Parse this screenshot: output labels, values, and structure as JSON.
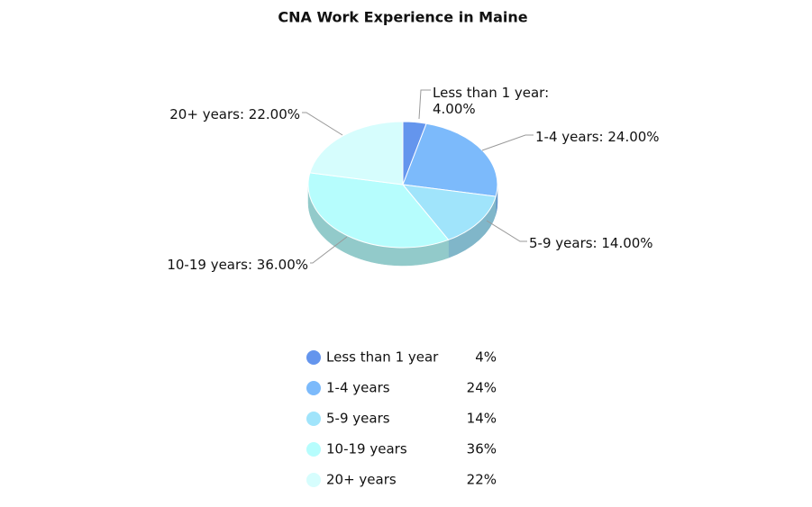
{
  "chart_data": {
    "type": "pie3d",
    "title": "CNA Work Experience in Maine",
    "categories": [
      "Less than 1 year",
      "1-4 years",
      "5-9 years",
      "10-19 years",
      "20+ years"
    ],
    "values": [
      4,
      24,
      14,
      36,
      22
    ],
    "value_labels": [
      "Less than 1 year: 4.00%",
      "1-4 years: 24.00%",
      "5-9 years: 14.00%",
      "10-19 years: 36.00%",
      "20+ years: 22.00%"
    ],
    "legend_value_labels": [
      "4%",
      "24%",
      "14%",
      "36%",
      "22%"
    ],
    "colors": [
      "#6495ed",
      "#7cbafb",
      "#a0e4fb",
      "#b6fdfd",
      "#d6fdfd"
    ],
    "legend": "bottom"
  }
}
